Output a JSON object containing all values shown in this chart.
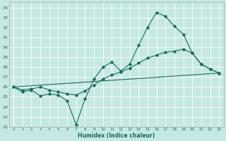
{
  "xlabel": "Humidex (Indice chaleur)",
  "xlim": [
    -0.5,
    23.5
  ],
  "ylim": [
    22,
    34.5
  ],
  "yticks": [
    22,
    23,
    24,
    25,
    26,
    27,
    28,
    29,
    30,
    31,
    32,
    33,
    34
  ],
  "xticks": [
    0,
    1,
    2,
    3,
    4,
    5,
    6,
    7,
    8,
    9,
    10,
    11,
    12,
    13,
    14,
    15,
    16,
    17,
    18,
    19,
    20,
    21,
    22,
    23
  ],
  "bg_color": "#c5e8e4",
  "grid_color": "#ffffff",
  "line_color": "#1a6b5e",
  "line_width": 0.8,
  "marker": "D",
  "marker_size": 1.8,
  "line1_x": [
    0,
    1,
    2,
    3,
    4,
    5,
    6,
    7,
    8,
    9,
    10,
    11,
    12,
    13,
    14,
    15,
    16,
    17,
    18,
    19,
    20,
    21,
    22,
    23
  ],
  "line1_y": [
    26,
    25.5,
    25.7,
    25.1,
    25.3,
    25.2,
    24.6,
    22.2,
    24.8,
    26.8,
    28.0,
    28.5,
    27.6,
    28.3,
    30.2,
    32.0,
    33.5,
    33.1,
    32.1,
    31.3,
    29.4,
    28.3,
    27.8,
    27.4
  ],
  "line2_x": [
    0,
    1,
    2,
    3,
    4,
    5,
    6,
    7,
    8,
    9,
    10,
    11,
    12,
    13,
    14,
    15,
    16,
    17,
    18,
    19,
    20,
    21,
    22,
    23
  ],
  "line2_y": [
    26.0,
    25.7,
    25.8,
    26.0,
    25.7,
    25.5,
    25.3,
    25.2,
    25.6,
    26.2,
    26.8,
    27.2,
    27.5,
    27.9,
    28.4,
    28.9,
    29.2,
    29.5,
    29.6,
    29.8,
    29.4,
    28.3,
    27.8,
    27.4
  ],
  "line3_x": [
    0,
    23
  ],
  "line3_y": [
    26.0,
    27.4
  ]
}
